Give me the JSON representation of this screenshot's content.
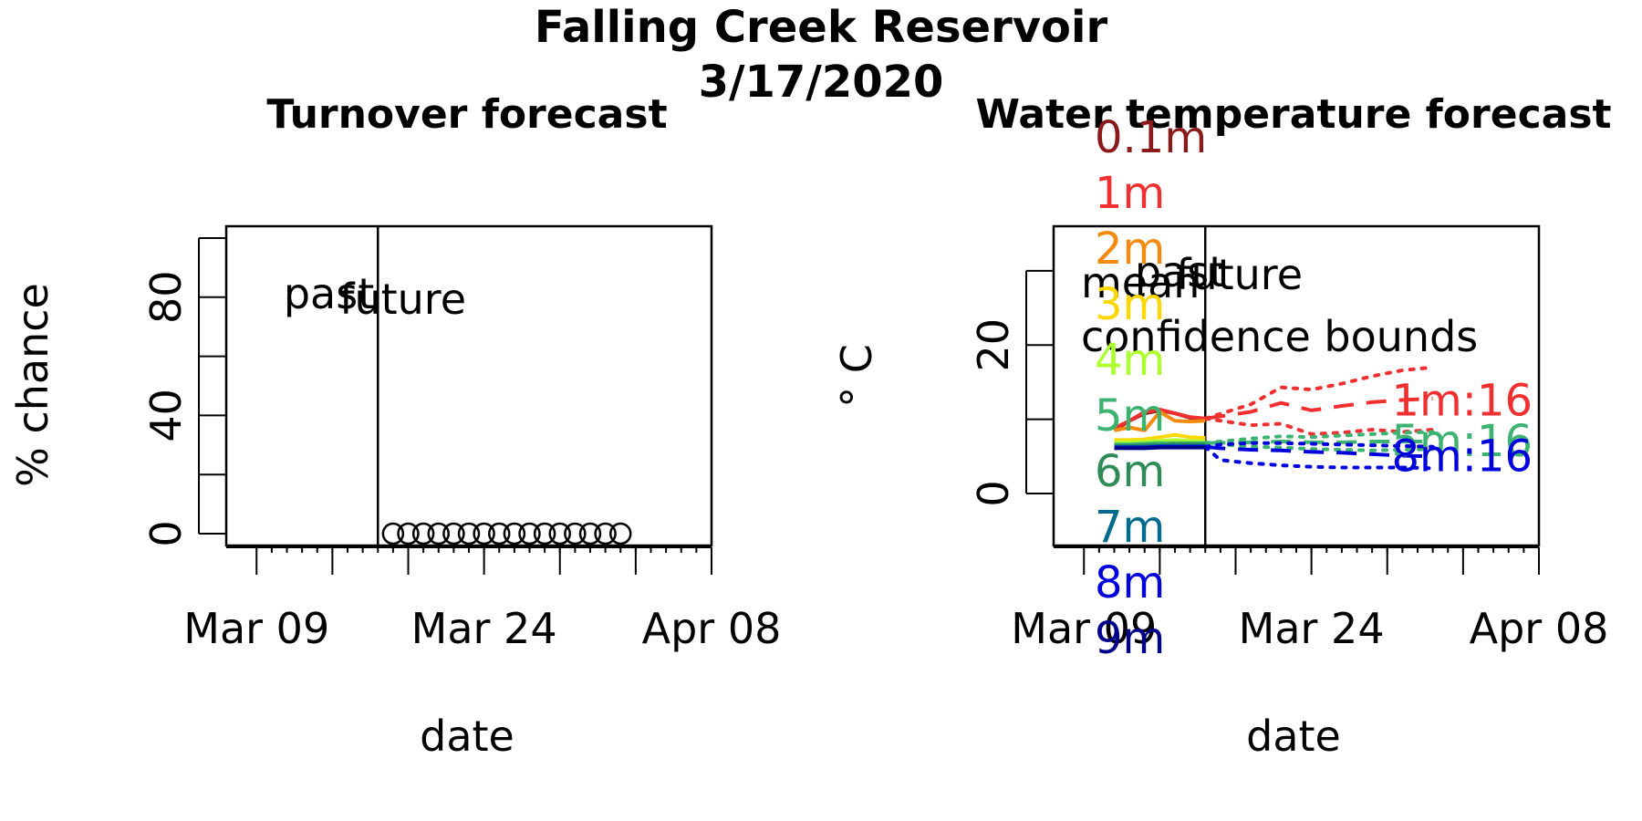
{
  "figure": {
    "title_line1": "Falling Creek Reservoir",
    "title_line2": "3/17/2020"
  },
  "chart_data": [
    {
      "type": "scatter",
      "title": "Turnover forecast",
      "xlabel": "date",
      "ylabel": "% chance",
      "x_range": [
        "2020-03-07",
        "2020-04-08"
      ],
      "ylim": [
        -4,
        104
      ],
      "x_tick_labels": [
        {
          "date": "2020-03-09",
          "label": "Mar 09"
        },
        {
          "date": "2020-03-24",
          "label": "Mar 24"
        },
        {
          "date": "2020-04-08",
          "label": "Apr 08"
        }
      ],
      "x_major_ticks": [
        "2020-03-09",
        "2020-03-14",
        "2020-03-19",
        "2020-03-24",
        "2020-03-29",
        "2020-04-03",
        "2020-04-08"
      ],
      "y_ticks": [
        0,
        20,
        40,
        60,
        80,
        100
      ],
      "y_tick_labels": [
        0,
        40,
        80
      ],
      "divider_date": "2020-03-17",
      "past_label": "past",
      "future_label": "future",
      "series": [
        {
          "x": [
            "2020-03-18",
            "2020-03-19",
            "2020-03-20",
            "2020-03-21",
            "2020-03-22",
            "2020-03-23",
            "2020-03-24",
            "2020-03-25",
            "2020-03-26",
            "2020-03-27",
            "2020-03-28",
            "2020-03-29",
            "2020-03-30",
            "2020-03-31",
            "2020-04-01",
            "2020-04-02"
          ],
          "y": [
            0,
            0,
            0,
            0,
            0,
            0,
            0,
            0,
            0,
            0,
            0,
            0,
            0,
            0,
            0,
            0
          ]
        }
      ]
    },
    {
      "type": "line",
      "title": "Water temperature forecast",
      "xlabel": "date",
      "ylabel": "° C",
      "x_range": [
        "2020-03-07",
        "2020-04-08"
      ],
      "ylim": [
        -7,
        36
      ],
      "x_tick_labels": [
        {
          "date": "2020-03-09",
          "label": "Mar 09"
        },
        {
          "date": "2020-03-24",
          "label": "Mar 24"
        },
        {
          "date": "2020-04-08",
          "label": "Apr 08"
        }
      ],
      "x_major_ticks": [
        "2020-03-09",
        "2020-03-14",
        "2020-03-19",
        "2020-03-24",
        "2020-03-29",
        "2020-04-03",
        "2020-04-08"
      ],
      "y_ticks": [
        0,
        10,
        20,
        30
      ],
      "y_tick_labels": [
        0,
        20
      ],
      "divider_date": "2020-03-17",
      "past_label": "past",
      "future_label": "future",
      "legend": {
        "mean": "mean",
        "confidence": "confidence bounds"
      },
      "depth_labels": [
        {
          "label": "0.1m",
          "color": "#8B1A1A"
        },
        {
          "label": "1m",
          "color": "#F03030"
        },
        {
          "label": "2m",
          "color": "#F58A10"
        },
        {
          "label": "3m",
          "color": "#FFD700"
        },
        {
          "label": "4m",
          "color": "#ADFF2F"
        },
        {
          "label": "5m",
          "color": "#3CB371"
        },
        {
          "label": "6m",
          "color": "#2E8B57"
        },
        {
          "label": "7m",
          "color": "#006B8F"
        },
        {
          "label": "8m",
          "color": "#0000DD"
        },
        {
          "label": "9m",
          "color": "#00008B"
        }
      ],
      "end_labels": [
        {
          "label": "1m:16",
          "color": "#F03030",
          "y": 12.5
        },
        {
          "label": "5m:16",
          "color": "#3CB371",
          "y": 7.0
        },
        {
          "label": "8m:16",
          "color": "#0000DD",
          "y": 5.0
        }
      ],
      "observed": [
        {
          "name": "0.1m",
          "color": "#8B1A1A",
          "x": [
            "2020-03-11",
            "2020-03-12",
            "2020-03-13",
            "2020-03-14",
            "2020-03-15",
            "2020-03-16",
            "2020-03-17"
          ],
          "y": [
            8.5,
            9.8,
            10.8,
            11.2,
            10.8,
            10.2,
            10.0
          ]
        },
        {
          "name": "1m",
          "color": "#F03030",
          "x": [
            "2020-03-11",
            "2020-03-12",
            "2020-03-13",
            "2020-03-14",
            "2020-03-15",
            "2020-03-16",
            "2020-03-17"
          ],
          "y": [
            8.8,
            9.8,
            11.0,
            11.3,
            10.8,
            10.3,
            10.1
          ]
        },
        {
          "name": "2m",
          "color": "#F58A10",
          "x": [
            "2020-03-11",
            "2020-03-12",
            "2020-03-13",
            "2020-03-14",
            "2020-03-15",
            "2020-03-16",
            "2020-03-17"
          ],
          "y": [
            8.5,
            8.9,
            8.5,
            11.0,
            9.8,
            9.7,
            9.8
          ]
        },
        {
          "name": "3m",
          "color": "#FFD700",
          "x": [
            "2020-03-11",
            "2020-03-12",
            "2020-03-13",
            "2020-03-14",
            "2020-03-15",
            "2020-03-16",
            "2020-03-17"
          ],
          "y": [
            7.2,
            7.2,
            7.3,
            7.6,
            7.9,
            7.6,
            7.5
          ]
        },
        {
          "name": "4m",
          "color": "#ADFF2F",
          "x": [
            "2020-03-11",
            "2020-03-12",
            "2020-03-13",
            "2020-03-14",
            "2020-03-15",
            "2020-03-16",
            "2020-03-17"
          ],
          "y": [
            6.9,
            6.9,
            7.0,
            7.1,
            7.2,
            7.1,
            7.0
          ]
        },
        {
          "name": "5m",
          "color": "#3CB371",
          "x": [
            "2020-03-11",
            "2020-03-12",
            "2020-03-13",
            "2020-03-14",
            "2020-03-15",
            "2020-03-16",
            "2020-03-17"
          ],
          "y": [
            6.6,
            6.6,
            6.7,
            6.8,
            6.8,
            6.8,
            6.8
          ]
        },
        {
          "name": "6m",
          "color": "#2E8B57",
          "x": [
            "2020-03-11",
            "2020-03-12",
            "2020-03-13",
            "2020-03-14",
            "2020-03-15",
            "2020-03-16",
            "2020-03-17"
          ],
          "y": [
            6.4,
            6.4,
            6.5,
            6.5,
            6.6,
            6.6,
            6.6
          ]
        },
        {
          "name": "7m",
          "color": "#006B8F",
          "x": [
            "2020-03-11",
            "2020-03-12",
            "2020-03-13",
            "2020-03-14",
            "2020-03-15",
            "2020-03-16",
            "2020-03-17"
          ],
          "y": [
            6.3,
            6.3,
            6.3,
            6.4,
            6.4,
            6.4,
            6.4
          ]
        },
        {
          "name": "8m",
          "color": "#0000DD",
          "x": [
            "2020-03-11",
            "2020-03-12",
            "2020-03-13",
            "2020-03-14",
            "2020-03-15",
            "2020-03-16",
            "2020-03-17"
          ],
          "y": [
            6.2,
            6.2,
            6.2,
            6.3,
            6.3,
            6.3,
            6.3
          ]
        },
        {
          "name": "9m",
          "color": "#00008B",
          "x": [
            "2020-03-11",
            "2020-03-12",
            "2020-03-13",
            "2020-03-14",
            "2020-03-15",
            "2020-03-16",
            "2020-03-17"
          ],
          "y": [
            6.1,
            6.1,
            6.1,
            6.2,
            6.2,
            6.2,
            6.2
          ]
        }
      ],
      "forecast": [
        {
          "name": "1m",
          "color": "#F03030",
          "x": [
            "2020-03-17",
            "2020-03-20",
            "2020-03-22",
            "2020-03-24",
            "2020-03-26",
            "2020-03-28",
            "2020-03-30",
            "2020-04-01"
          ],
          "mean": [
            10.1,
            11.0,
            12.2,
            11.2,
            11.8,
            12.3,
            12.6,
            12.8
          ],
          "upper": [
            10.1,
            12.0,
            14.3,
            14.0,
            14.8,
            15.8,
            16.6,
            17.0
          ],
          "lower": [
            10.1,
            9.2,
            9.4,
            8.0,
            8.2,
            8.6,
            8.3,
            8.6
          ]
        },
        {
          "name": "5m",
          "color": "#3CB371",
          "x": [
            "2020-03-17",
            "2020-03-20",
            "2020-03-22",
            "2020-03-24",
            "2020-03-26",
            "2020-03-28",
            "2020-03-30",
            "2020-04-01"
          ],
          "mean": [
            6.8,
            6.9,
            7.0,
            6.9,
            6.9,
            7.0,
            7.0,
            7.0
          ],
          "upper": [
            6.8,
            7.4,
            7.7,
            7.6,
            7.8,
            8.0,
            8.2,
            8.3
          ],
          "lower": [
            6.8,
            6.3,
            6.2,
            6.0,
            5.9,
            5.8,
            5.9,
            6.0
          ]
        },
        {
          "name": "8m",
          "color": "#0000DD",
          "x": [
            "2020-03-17",
            "2020-03-18",
            "2020-03-20",
            "2020-03-22",
            "2020-03-24",
            "2020-03-26",
            "2020-03-28",
            "2020-03-30",
            "2020-04-01"
          ],
          "mean": [
            6.3,
            6.1,
            5.9,
            5.8,
            5.6,
            5.5,
            5.3,
            5.1,
            5.0
          ],
          "upper": [
            6.3,
            6.6,
            6.8,
            6.8,
            6.7,
            6.6,
            6.5,
            6.4,
            6.3
          ],
          "lower": [
            6.3,
            4.5,
            4.1,
            3.8,
            3.6,
            3.5,
            3.5,
            3.5,
            3.4
          ]
        }
      ]
    }
  ]
}
